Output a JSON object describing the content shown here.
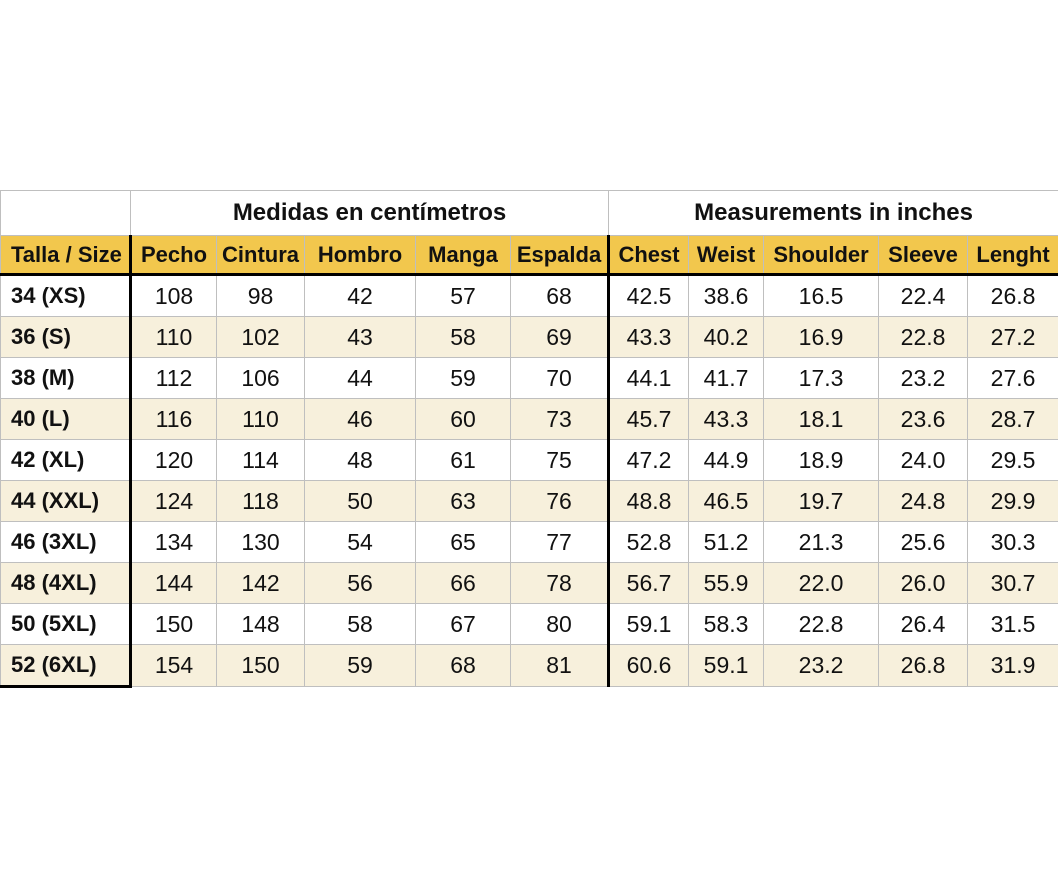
{
  "chart_data": {
    "type": "table",
    "title": "",
    "group_headers": [
      "Medidas en centímetros",
      "Measurements in inches"
    ],
    "columns": [
      "Talla / Size",
      "Pecho",
      "Cintura",
      "Hombro",
      "Manga",
      "Espalda",
      "Chest",
      "Weist",
      "Shoulder",
      "Sleeve",
      "Lenght"
    ],
    "rows": [
      {
        "size": "34 (XS)",
        "cm": [
          "108",
          "98",
          "42",
          "57",
          "68"
        ],
        "inches": [
          "42.5",
          "38.6",
          "16.5",
          "22.4",
          "26.8"
        ]
      },
      {
        "size": "36 (S)",
        "cm": [
          "110",
          "102",
          "43",
          "58",
          "69"
        ],
        "inches": [
          "43.3",
          "40.2",
          "16.9",
          "22.8",
          "27.2"
        ]
      },
      {
        "size": "38 (M)",
        "cm": [
          "112",
          "106",
          "44",
          "59",
          "70"
        ],
        "inches": [
          "44.1",
          "41.7",
          "17.3",
          "23.2",
          "27.6"
        ]
      },
      {
        "size": "40 (L)",
        "cm": [
          "116",
          "110",
          "46",
          "60",
          "73"
        ],
        "inches": [
          "45.7",
          "43.3",
          "18.1",
          "23.6",
          "28.7"
        ]
      },
      {
        "size": "42 (XL)",
        "cm": [
          "120",
          "114",
          "48",
          "61",
          "75"
        ],
        "inches": [
          "47.2",
          "44.9",
          "18.9",
          "24.0",
          "29.5"
        ]
      },
      {
        "size": "44 (XXL)",
        "cm": [
          "124",
          "118",
          "50",
          "63",
          "76"
        ],
        "inches": [
          "48.8",
          "46.5",
          "19.7",
          "24.8",
          "29.9"
        ]
      },
      {
        "size": "46 (3XL)",
        "cm": [
          "134",
          "130",
          "54",
          "65",
          "77"
        ],
        "inches": [
          "52.8",
          "51.2",
          "21.3",
          "25.6",
          "30.3"
        ]
      },
      {
        "size": "48 (4XL)",
        "cm": [
          "144",
          "142",
          "56",
          "66",
          "78"
        ],
        "inches": [
          "56.7",
          "55.9",
          "22.0",
          "26.0",
          "30.7"
        ]
      },
      {
        "size": "50 (5XL)",
        "cm": [
          "150",
          "148",
          "58",
          "67",
          "80"
        ],
        "inches": [
          "59.1",
          "58.3",
          "22.8",
          "26.4",
          "31.5"
        ]
      },
      {
        "size": "52 (6XL)",
        "cm": [
          "154",
          "150",
          "59",
          "68",
          "81"
        ],
        "inches": [
          "60.6",
          "59.1",
          "23.2",
          "26.8",
          "31.9"
        ]
      }
    ],
    "layout": {
      "grid": "on",
      "legend": "none",
      "axis_ranges": "none"
    }
  },
  "colors": {
    "header_fill": "#f2c74d",
    "alt_row_fill": "#f7f0dc",
    "grid_line": "#bfbfbf",
    "section_divider": "#000000",
    "text": "#111111",
    "background": "#ffffff"
  }
}
